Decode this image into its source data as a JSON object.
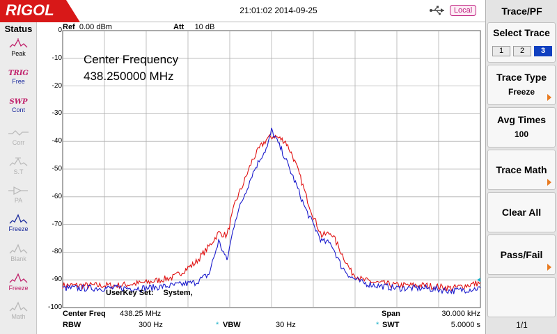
{
  "header": {
    "brand": "RIGOL",
    "datetime": "21:01:02 2014-09-25",
    "remote_status": "Local"
  },
  "status_panel": {
    "title": "Status",
    "items": [
      {
        "id": "peak",
        "top": "",
        "label": "Peak",
        "icon": "peak-icon",
        "state": "normal"
      },
      {
        "id": "trig",
        "top": "TRIG",
        "label": "Free",
        "icon": "",
        "state": "active"
      },
      {
        "id": "swp",
        "top": "SWP",
        "label": "Cont",
        "icon": "",
        "state": "active"
      },
      {
        "id": "corr",
        "top": "",
        "label": "Corr",
        "icon": "corr-icon",
        "state": "dim"
      },
      {
        "id": "st",
        "top": "",
        "label": "S.T",
        "icon": "st-icon",
        "state": "dim"
      },
      {
        "id": "pa",
        "top": "",
        "label": "PA",
        "icon": "pa-icon",
        "state": "dim"
      },
      {
        "id": "freeze1",
        "top": "",
        "label": "Freeze",
        "icon": "trace-wave-icon",
        "state": "active"
      },
      {
        "id": "blank",
        "top": "",
        "label": "Blank",
        "icon": "trace-wave-icon",
        "state": "dim"
      },
      {
        "id": "freeze2",
        "top": "",
        "label": "Freeze",
        "icon": "trace-wave-icon",
        "state": "freeze-red"
      },
      {
        "id": "math",
        "top": "",
        "label": "Math",
        "icon": "trace-wave-icon",
        "state": "dim"
      }
    ]
  },
  "plot": {
    "ref_label": "Ref",
    "ref_value": "0.00 dBm",
    "att_label": "Att",
    "att_value": "10 dB",
    "annotation_line1": "Center Frequency",
    "annotation_line2": "438.250000 MHz",
    "userkey_label": "UserKey Set:",
    "userkey_value": "System,"
  },
  "bottom": {
    "center_freq_label": "Center Freq",
    "center_freq_value": "438.25 MHz",
    "span_label": "Span",
    "span_value": "30.000 kHz",
    "rbw_label": "RBW",
    "rbw_value": "300 Hz",
    "vbw_label": "VBW",
    "vbw_value": "30 Hz",
    "swt_label": "SWT",
    "swt_value": "5.0000 s",
    "coupled_marker": "*"
  },
  "menu": {
    "title": "Trace/PF",
    "select_trace_label": "Select Trace",
    "trace_options": [
      "1",
      "2",
      "3"
    ],
    "selected_trace": "3",
    "trace_type_label": "Trace Type",
    "trace_type_value": "Freeze",
    "avg_times_label": "Avg Times",
    "avg_times_value": "100",
    "trace_math_label": "Trace Math",
    "clear_all_label": "Clear All",
    "pass_fail_label": "Pass/Fail",
    "page_indicator": "1/1"
  },
  "colors": {
    "trace_red": "#e01010",
    "trace_blue": "#1a1acc",
    "grid": "#b0b0b0",
    "brand_red": "#d81818",
    "accent_orange": "#e87a20"
  },
  "chart_data": {
    "type": "line",
    "title": "",
    "xlabel": "",
    "ylabel": "",
    "x_center_mhz": 438.25,
    "x_span_khz": 30,
    "x_range_khz": [
      -15,
      15
    ],
    "ylim": [
      -100,
      0
    ],
    "y_ticks": [
      0,
      -10,
      -20,
      -30,
      -40,
      -50,
      -60,
      -70,
      -80,
      -90,
      -100
    ],
    "y_unit": "dBm",
    "grid": true,
    "series": [
      {
        "name": "",
        "color": "#e01010",
        "x_khz": [
          -15,
          -13,
          -11,
          -9,
          -7,
          -5.5,
          -4.5,
          -3.8,
          -3.2,
          -2.6,
          -2,
          -1.4,
          -0.8,
          -0.3,
          0.2,
          0.6,
          1.0,
          1.5,
          2.0,
          2.5,
          3.0,
          3.6,
          4.3,
          5.0,
          5.7,
          6.5,
          7.5,
          9,
          11,
          13,
          15
        ],
        "y_dbm": [
          -92,
          -92,
          -92,
          -91,
          -89,
          -84,
          -78,
          -73,
          -74,
          -62,
          -55,
          -47,
          -42,
          -39,
          -38,
          -39,
          -40,
          -45,
          -52,
          -60,
          -67,
          -74,
          -73,
          -80,
          -87,
          -90,
          -91,
          -92,
          -92,
          -93,
          -91
        ]
      },
      {
        "name": "",
        "color": "#1a1acc",
        "x_khz": [
          -15,
          -13,
          -11,
          -9,
          -7,
          -5.5,
          -4.5,
          -3.8,
          -3.2,
          -2.6,
          -2,
          -1.4,
          -0.8,
          -0.3,
          0.0,
          0.4,
          0.8,
          1.3,
          1.8,
          2.4,
          3.0,
          3.6,
          4.3,
          5.0,
          5.7,
          6.5,
          7.5,
          9,
          11,
          13,
          15
        ],
        "y_dbm": [
          -93,
          -93,
          -93,
          -93,
          -92,
          -91,
          -88,
          -76,
          -83,
          -68,
          -60,
          -52,
          -46,
          -42,
          -36,
          -40,
          -44,
          -50,
          -56,
          -64,
          -70,
          -76,
          -77,
          -85,
          -89,
          -91,
          -92,
          -93,
          -93,
          -94,
          -93
        ]
      }
    ]
  }
}
